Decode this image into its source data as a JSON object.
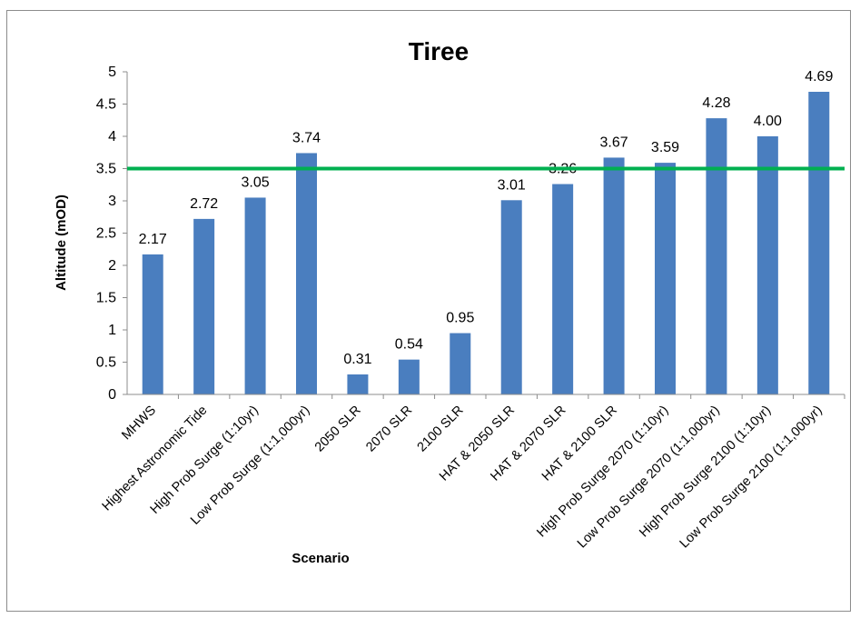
{
  "chart_data": {
    "type": "bar",
    "title": "Tiree",
    "xlabel": "Scenario",
    "ylabel": "Altitude (mOD)",
    "ylim": [
      0,
      5
    ],
    "yticks": [
      "0",
      "0.5",
      "1",
      "1.5",
      "2",
      "2.5",
      "3",
      "3.5",
      "4",
      "4.5",
      "5"
    ],
    "categories": [
      "MHWS",
      "Highest Astronomic Tide",
      "High Prob Surge (1:10yr)",
      "Low Prob Surge (1:1,000yr)",
      "2050 SLR",
      "2070 SLR",
      "2100 SLR",
      "HAT & 2050 SLR",
      "HAT & 2070 SLR",
      "HAT & 2100 SLR",
      "High Prob Surge 2070 (1:10yr)",
      "Low Prob Surge 2070 (1:1,000yr)",
      "High Prob Surge 2100 (1:10yr)",
      "Low Prob Surge 2100 (1:1,000yr)"
    ],
    "values": [
      2.17,
      2.72,
      3.05,
      3.74,
      0.31,
      0.54,
      0.95,
      3.01,
      3.26,
      3.67,
      3.59,
      4.28,
      4.0,
      4.69
    ],
    "data_labels": [
      "2.17",
      "2.72",
      "3.05",
      "3.74",
      "0.31",
      "0.54",
      "0.95",
      "3.01",
      "3.26",
      "3.67",
      "3.59",
      "4.28",
      "4.00",
      "4.69"
    ],
    "reference_line": {
      "y": 3.5,
      "color": "#00b050"
    },
    "bar_color": "#4a7ebf",
    "grid": false,
    "legend": "none"
  }
}
